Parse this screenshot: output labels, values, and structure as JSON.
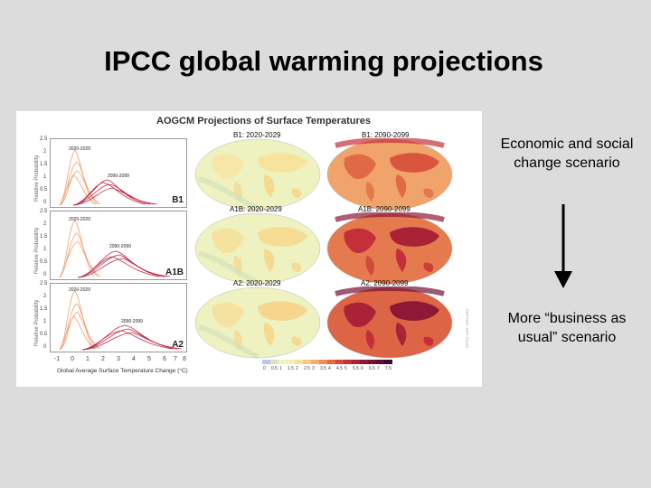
{
  "slide": {
    "title": "IPCC global warming projections",
    "scenario_top": "Economic and social change scenario",
    "scenario_bottom": "More “business as usual” scenario"
  },
  "figure": {
    "title": "AOGCM Projections of Surface Temperatures",
    "ylabel": "Relative Probability",
    "xlabel": "Global Average Surface Temperature Change (°C)",
    "yticks": [
      "2.5",
      "2",
      "1.5",
      "1",
      "0.5",
      "0"
    ],
    "xticks": [
      "-1",
      "0",
      "1",
      "2",
      "3",
      "4",
      "5",
      "6",
      "7",
      "8"
    ],
    "panels": [
      {
        "code": "B1",
        "early_label": "2020-2029",
        "late_label": "2090-2099",
        "map_early": "B1: 2020-2029",
        "map_late": "B1: 2090-2099"
      },
      {
        "code": "A1B",
        "early_label": "2020-2029",
        "late_label": "2090-2099",
        "map_early": "A1B: 2020-2029",
        "map_late": "A1B: 2090-2099"
      },
      {
        "code": "A2",
        "early_label": "2020-2029",
        "late_label": "2090-2099",
        "map_early": "A2: 2020-2029",
        "map_late": "A2: 2090-2099"
      }
    ],
    "legend_ticks": [
      "0",
      "0.5",
      "1",
      "1.5",
      "2",
      "2.5",
      "3",
      "3.5",
      "4",
      "4.5",
      "5",
      "5.5",
      "6",
      "6.5",
      "7",
      "7.5"
    ],
    "legend_colors": [
      "#b9c8e8",
      "#d8e3c0",
      "#eef2c6",
      "#f6f0b4",
      "#f9e19a",
      "#f7c983",
      "#f3ad6c",
      "#ee8d57",
      "#e66b45",
      "#d9493a",
      "#c4303a",
      "#aa2236",
      "#8e1836",
      "#741236",
      "#5a0e34",
      "#3e0a2e"
    ],
    "credit": "©IPCC 2007: WG1-AR4"
  }
}
